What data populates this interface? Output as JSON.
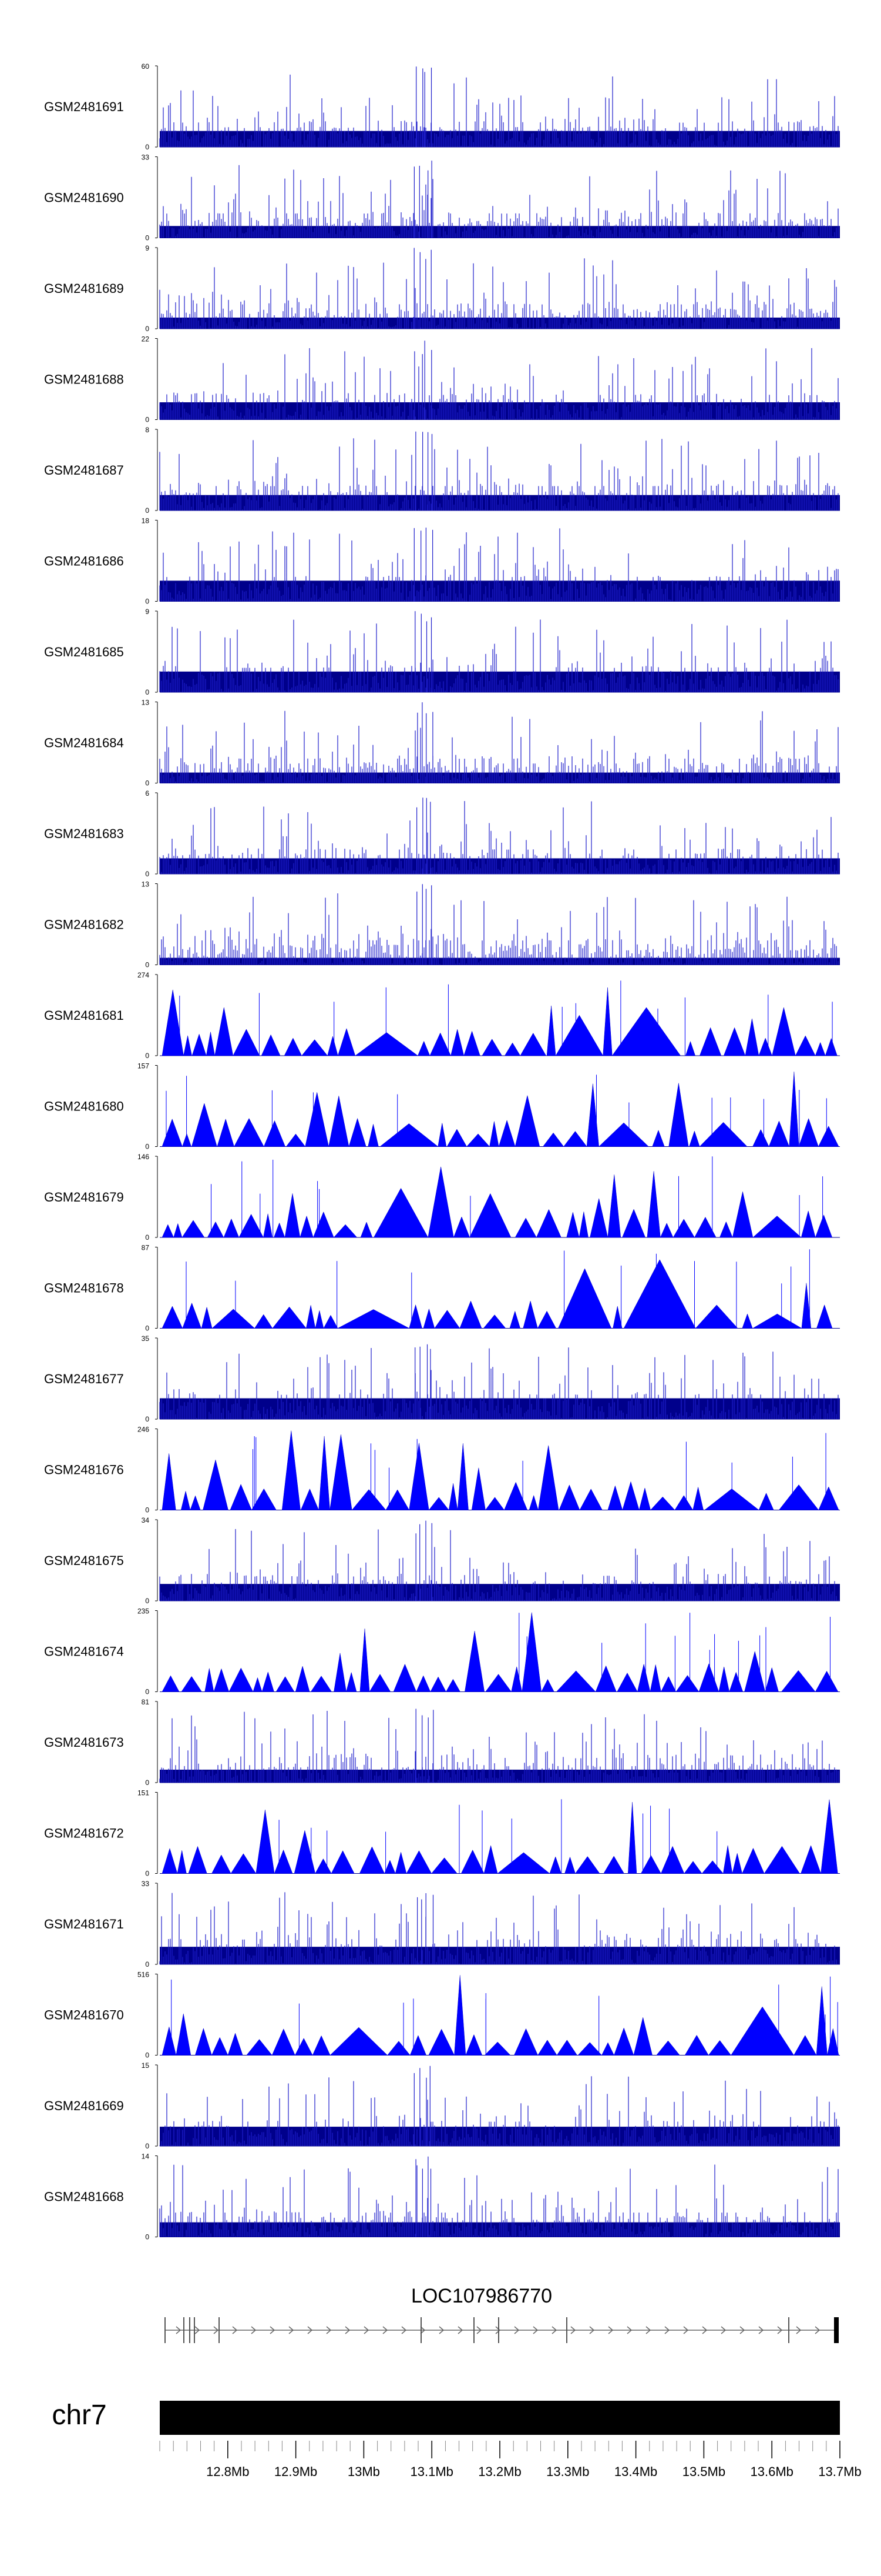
{
  "chart_data": {
    "type": "genome-browser-tracks",
    "colors": {
      "signal": "#0000ff",
      "signal_dense": "#00008b",
      "axis": "#000000"
    },
    "tracks": [
      {
        "name": "GSM2481691",
        "ymin": "0",
        "ymax": "60",
        "ymax_value": 60,
        "style": "dense"
      },
      {
        "name": "GSM2481690",
        "ymin": "0",
        "ymax": "33",
        "ymax_value": 33,
        "style": "dense"
      },
      {
        "name": "GSM2481689",
        "ymin": "0",
        "ymax": "9",
        "ymax_value": 9,
        "style": "dense"
      },
      {
        "name": "GSM2481688",
        "ymin": "0",
        "ymax": "22",
        "ymax_value": 22,
        "style": "dense"
      },
      {
        "name": "GSM2481687",
        "ymin": "0",
        "ymax": "8",
        "ymax_value": 8,
        "style": "dense"
      },
      {
        "name": "GSM2481686",
        "ymin": "0",
        "ymax": "18",
        "ymax_value": 18,
        "style": "dense"
      },
      {
        "name": "GSM2481685",
        "ymin": "0",
        "ymax": "9",
        "ymax_value": 9,
        "style": "dense"
      },
      {
        "name": "GSM2481684",
        "ymin": "0",
        "ymax": "13",
        "ymax_value": 13,
        "style": "dense"
      },
      {
        "name": "GSM2481683",
        "ymin": "0",
        "ymax": "6",
        "ymax_value": 6,
        "style": "dense"
      },
      {
        "name": "GSM2481682",
        "ymin": "0",
        "ymax": "13",
        "ymax_value": 13,
        "style": "dense"
      },
      {
        "name": "GSM2481681",
        "ymin": "0",
        "ymax": "274",
        "ymax_value": 274,
        "style": "triangles"
      },
      {
        "name": "GSM2481680",
        "ymin": "0",
        "ymax": "157",
        "ymax_value": 157,
        "style": "triangles"
      },
      {
        "name": "GSM2481679",
        "ymin": "0",
        "ymax": "146",
        "ymax_value": 146,
        "style": "triangles"
      },
      {
        "name": "GSM2481678",
        "ymin": "0",
        "ymax": "87",
        "ymax_value": 87,
        "style": "triangles"
      },
      {
        "name": "GSM2481677",
        "ymin": "0",
        "ymax": "35",
        "ymax_value": 35,
        "style": "dense"
      },
      {
        "name": "GSM2481676",
        "ymin": "0",
        "ymax": "246",
        "ymax_value": 246,
        "style": "triangles"
      },
      {
        "name": "GSM2481675",
        "ymin": "0",
        "ymax": "34",
        "ymax_value": 34,
        "style": "dense"
      },
      {
        "name": "GSM2481674",
        "ymin": "0",
        "ymax": "235",
        "ymax_value": 235,
        "style": "triangles"
      },
      {
        "name": "GSM2481673",
        "ymin": "0",
        "ymax": "81",
        "ymax_value": 81,
        "style": "dense"
      },
      {
        "name": "GSM2481672",
        "ymin": "0",
        "ymax": "151",
        "ymax_value": 151,
        "style": "triangles"
      },
      {
        "name": "GSM2481671",
        "ymin": "0",
        "ymax": "33",
        "ymax_value": 33,
        "style": "dense"
      },
      {
        "name": "GSM2481670",
        "ymin": "0",
        "ymax": "516",
        "ymax_value": 516,
        "style": "triangles"
      },
      {
        "name": "GSM2481669",
        "ymin": "0",
        "ymax": "15",
        "ymax_value": 15,
        "style": "dense"
      },
      {
        "name": "GSM2481668",
        "ymin": "0",
        "ymax": "14",
        "ymax_value": 14,
        "style": "dense"
      }
    ],
    "gene": {
      "name": "LOC107986770",
      "strand": "+"
    },
    "chromosome": "chr7",
    "x_axis": {
      "range_mb": [
        12.7,
        13.7
      ],
      "tick_labels": [
        "12.8Mb",
        "12.9Mb",
        "13Mb",
        "13.1Mb",
        "13.2Mb",
        "13.3Mb",
        "13.4Mb",
        "13.5Mb",
        "13.6Mb",
        "13.7Mb"
      ],
      "tick_values_mb": [
        12.8,
        12.9,
        13.0,
        13.1,
        13.2,
        13.3,
        13.4,
        13.5,
        13.6,
        13.7
      ]
    }
  }
}
